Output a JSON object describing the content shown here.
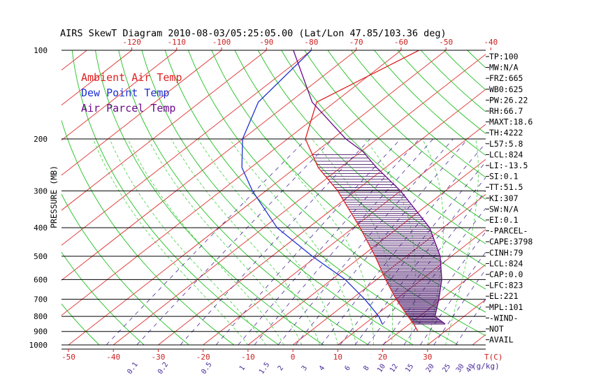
{
  "chart_data": {
    "type": "line",
    "title": "AIRS SkewT Diagram 2010-08-03/05:25:05.00 (Lat/Lon 47.85/103.36 deg)",
    "ylabel": "PRESSURE (MB)",
    "y_scale": "log",
    "ylim": [
      1000,
      100
    ],
    "xlim_celsius_at_1000mb": [
      -50,
      40
    ],
    "pressure_ticks": [
      100,
      200,
      300,
      400,
      500,
      600,
      700,
      800,
      900,
      1000
    ],
    "pressure_tick_labels": [
      "100",
      "200",
      "300",
      "400",
      "500",
      "600",
      "700",
      "800",
      "900",
      "1000"
    ],
    "top_temp_ticks": [
      -120,
      -110,
      -100,
      -90,
      -80,
      -70,
      -60,
      -50,
      -40
    ],
    "top_temp_tick_labels": [
      "-120",
      "-110",
      "-100",
      "-90",
      "-80",
      "-70",
      "-60",
      "-50",
      "-40"
    ],
    "bottom_temp_ticks": [
      -50,
      -40,
      -30,
      -20,
      -10,
      0,
      10,
      20,
      30
    ],
    "bottom_temp_tick_labels": [
      "-50",
      "-40",
      "-30",
      "-20",
      "-10",
      "0",
      "10",
      "20",
      "30"
    ],
    "bottom_axis_unit": "T(C)",
    "mixing_ratio_labels": [
      "0.1",
      "0.2",
      "0.5",
      "1",
      "1.5",
      "2",
      "3",
      "4",
      "6",
      "8",
      "10",
      "12",
      "15",
      "20",
      "25",
      "30",
      "40"
    ],
    "mixing_ratio_unit": "(g/kg)",
    "legend": [
      "Ambient Air Temp",
      "Dew Point Temp",
      "Air Parcel Temp"
    ],
    "legend_placement": "top-left",
    "grid": true,
    "series": [
      {
        "name": "Ambient Air Temp",
        "color": "#e02020",
        "points": [
          {
            "p": 900,
            "t": 24
          },
          {
            "p": 850,
            "t": 21
          },
          {
            "p": 800,
            "t": 17.5
          },
          {
            "p": 700,
            "t": 10
          },
          {
            "p": 600,
            "t": 2
          },
          {
            "p": 500,
            "t": -7
          },
          {
            "p": 400,
            "t": -18.5
          },
          {
            "p": 300,
            "t": -34
          },
          {
            "p": 250,
            "t": -45
          },
          {
            "p": 200,
            "t": -56
          },
          {
            "p": 150,
            "t": -64
          },
          {
            "p": 100,
            "t": -56
          }
        ]
      },
      {
        "name": "Dew Point Temp",
        "color": "#2030d0",
        "points": [
          {
            "p": 850,
            "t": 14
          },
          {
            "p": 800,
            "t": 11
          },
          {
            "p": 700,
            "t": 3
          },
          {
            "p": 600,
            "t": -7
          },
          {
            "p": 500,
            "t": -21
          },
          {
            "p": 400,
            "t": -37
          },
          {
            "p": 300,
            "t": -53
          },
          {
            "p": 250,
            "t": -62
          },
          {
            "p": 200,
            "t": -70
          },
          {
            "p": 150,
            "t": -77
          },
          {
            "p": 100,
            "t": -80
          }
        ]
      },
      {
        "name": "Air Parcel Temp",
        "color": "#6a0a8a",
        "points": [
          {
            "p": 850,
            "t": 28
          },
          {
            "p": 800,
            "t": 23.5
          },
          {
            "p": 700,
            "t": 19.5
          },
          {
            "p": 600,
            "t": 14.5
          },
          {
            "p": 500,
            "t": 7.5
          },
          {
            "p": 400,
            "t": -3
          },
          {
            "p": 300,
            "t": -20
          },
          {
            "p": 250,
            "t": -32
          },
          {
            "p": 221,
            "t": -39.5
          },
          {
            "p": 200,
            "t": -47
          },
          {
            "p": 150,
            "t": -65
          },
          {
            "p": 100,
            "t": -84
          }
        ]
      }
    ]
  },
  "sidebar": [
    "TP:100",
    "MW:N/A",
    "FRZ:665",
    "WB0:625",
    "PW:26.22",
    "RH:66.7",
    "MAXT:18.6",
    "TH:4222",
    "L57:5.8",
    "LCL:824",
    "LI:-13.5",
    "SI:0.1",
    "TT:51.5",
    "KI:307",
    "SW:N/A",
    "EI:0.1",
    "-PARCEL-",
    "CAPE:3798",
    "CINH:79",
    "LCL:824",
    "CAP:0.0",
    "LFC:823",
    "EL:221",
    "MPL:101",
    "-WIND-",
    " NOT",
    "AVAIL"
  ],
  "colors": {
    "isotherm": "#e03030",
    "dry_adiabat": "#20c020",
    "moist_adiabat": "#40d040",
    "mixing_ratio": "#4a2a9a",
    "isobar": "#000000",
    "hatch": "#4a1a6a"
  }
}
